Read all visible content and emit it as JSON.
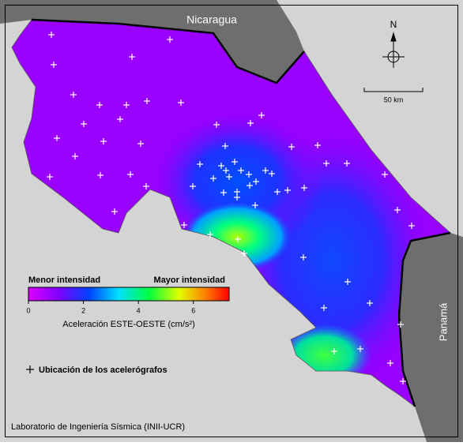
{
  "map": {
    "countries": {
      "north": "Nicaragua",
      "south": "Panamá"
    },
    "north_arrow": "N",
    "scale_bar": "50 km",
    "legend": {
      "low": "Menor intensidad",
      "high": "Mayor intensidad",
      "range": [
        0,
        7.3
      ],
      "ticks": [
        0,
        2,
        4,
        6
      ],
      "title": "Aceleración ESTE-OESTE (cm/s²)"
    },
    "stations_legend": "Ubicación de los acelerógrafos",
    "credit": "Laboratorio de Ingeniería Sísmica (INII-UCR)"
  }
}
